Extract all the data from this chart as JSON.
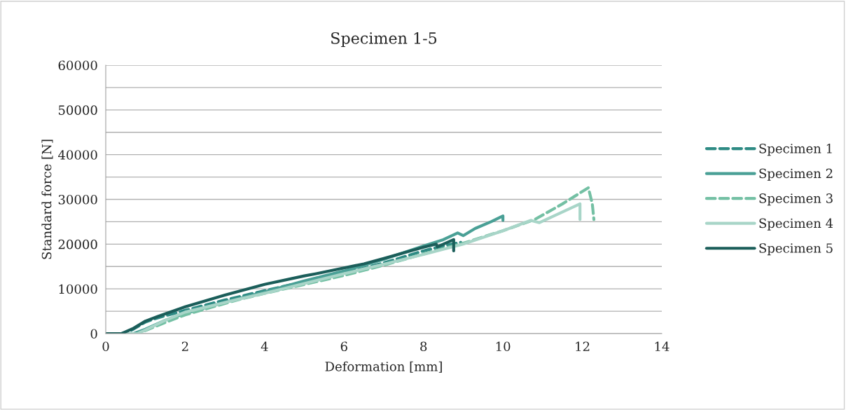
{
  "chart_data": {
    "type": "line",
    "title": "Specimen 1-5",
    "xlabel": "Deformation [mm]",
    "ylabel": "Standard force [N]",
    "xlim": [
      0,
      14
    ],
    "xticks": [
      0,
      2,
      4,
      6,
      8,
      10,
      12,
      14
    ],
    "ylim": [
      0,
      60000
    ],
    "yticks": [
      0,
      {
        "value": 5000,
        "label": null
      },
      10000,
      {
        "value": 15000,
        "label": null
      },
      20000,
      {
        "value": 25000,
        "label": null
      },
      30000,
      {
        "value": 35000,
        "label": null
      },
      40000,
      {
        "value": 45000,
        "label": null
      },
      50000,
      {
        "value": 55000,
        "label": null
      },
      60000
    ],
    "grid": "y",
    "legend": "right",
    "marker": "none",
    "series": [
      {
        "name": "Specimen 1",
        "color": "#2e8b84",
        "line_style": "dashed",
        "x": [
          0,
          0.4,
          0.6,
          1.0,
          1.3,
          2,
          3,
          4,
          5,
          6,
          7,
          8,
          8.5,
          8.94
        ],
        "values": [
          0,
          0,
          500,
          2600,
          3500,
          5200,
          7500,
          9600,
          11600,
          13500,
          15800,
          18500,
          19600,
          20400
        ]
      },
      {
        "name": "Specimen 2",
        "color": "#4aa096",
        "line_style": "solid",
        "x": [
          0,
          0.7,
          1.0,
          1.5,
          2,
          3,
          4,
          5,
          6,
          7,
          8,
          8.5,
          8.86,
          9.0,
          9.3,
          9.7,
          10.0,
          10.0
        ],
        "values": [
          0,
          0,
          1000,
          3000,
          4500,
          7000,
          9300,
          11800,
          14000,
          16600,
          19600,
          21000,
          22500,
          21900,
          23500,
          25000,
          26300,
          25300
        ]
      },
      {
        "name": "Specimen 3",
        "color": "#74c0a4",
        "line_style": "dashed",
        "x": [
          0,
          0.8,
          1.5,
          2,
          3.3,
          4,
          5,
          6,
          7,
          8,
          9,
          10,
          10.8,
          11.5,
          12.15,
          12.25,
          12.29
        ],
        "values": [
          0,
          0,
          2500,
          4200,
          7500,
          9000,
          11000,
          13000,
          15300,
          17800,
          20200,
          23000,
          25500,
          29000,
          32600,
          29000,
          25500
        ]
      },
      {
        "name": "Specimen 4",
        "color": "#a8d5c8",
        "line_style": "solid",
        "x": [
          0,
          0.8,
          1.0,
          1.5,
          2,
          3.3,
          4,
          5,
          6,
          7,
          8,
          9,
          10,
          10.7,
          10.92,
          11.94,
          11.94
        ],
        "values": [
          0,
          0,
          800,
          3000,
          4800,
          7600,
          9000,
          11200,
          13400,
          15500,
          17700,
          20000,
          23000,
          25300,
          24800,
          29000,
          25500
        ]
      },
      {
        "name": "Specimen 5",
        "color": "#1b5e5a",
        "line_style": "solid",
        "x": [
          0,
          0.4,
          0.7,
          1.0,
          1.3,
          2,
          3,
          4,
          5,
          5.3,
          6,
          6.5,
          7,
          8,
          8.32,
          8.35,
          8.76,
          8.76
        ],
        "values": [
          0,
          0,
          1200,
          2800,
          3800,
          6000,
          8600,
          11000,
          12900,
          13400,
          14700,
          15600,
          16800,
          19300,
          20000,
          19400,
          21000,
          18500
        ]
      }
    ]
  }
}
